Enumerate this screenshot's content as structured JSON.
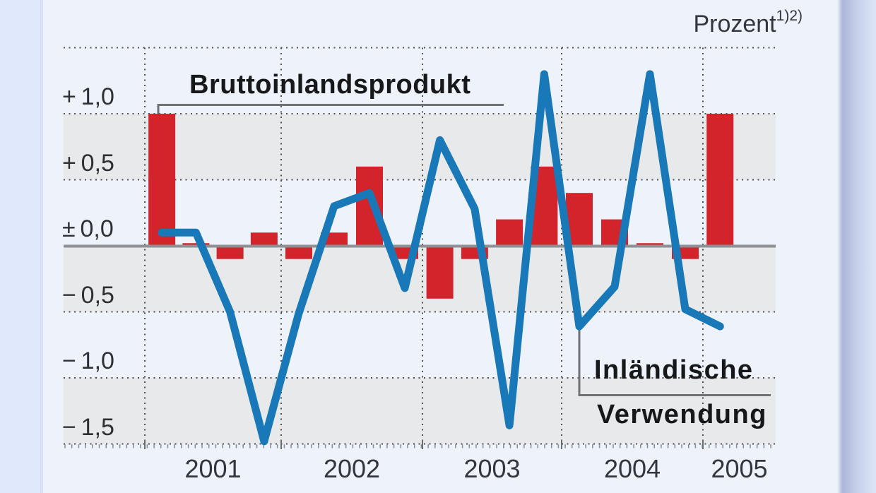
{
  "colors": {
    "page_background": "#edf2fb",
    "left_margin": "#dfe9fb",
    "right_margin_gradient": [
      "#aab5d9",
      "#dde5f7"
    ],
    "band_gray": "#e8e9ea",
    "zero_line": "#8d9094",
    "gridline": "#4d4f52",
    "leader_line": "#6e7275",
    "bar_red": "#d3242b",
    "line_blue": "#1878b8",
    "text_dark": "#17181a"
  },
  "chart_data": {
    "type": "combo",
    "title": "",
    "unit": "Prozent",
    "footnote_marks": "1)2)",
    "x_axis": {
      "year_labels": [
        "2001",
        "2002",
        "2003",
        "2004",
        "2005"
      ],
      "quarters_per_year": [
        4,
        4,
        4,
        4,
        1
      ],
      "quarters": [
        "2001 Q1",
        "2001 Q2",
        "2001 Q3",
        "2001 Q4",
        "2002 Q1",
        "2002 Q2",
        "2002 Q3",
        "2002 Q4",
        "2003 Q1",
        "2003 Q2",
        "2003 Q3",
        "2003 Q4",
        "2004 Q1",
        "2004 Q2",
        "2004 Q3",
        "2004 Q4",
        "2005 Q1"
      ]
    },
    "y_axis": {
      "tick_labels": [
        "+1,0",
        "+0,5",
        "±0,0",
        "−0,5",
        "−1,0",
        "−1,5"
      ],
      "tick_values": [
        1.0,
        0.5,
        0.0,
        -0.5,
        -1.0,
        -1.5
      ],
      "top_gridline_value": 1.5,
      "ylim": [
        -1.75,
        1.5
      ],
      "grid": "dotted",
      "zero_line": "solid"
    },
    "series": [
      {
        "name": "Bruttoinlandsprodukt",
        "type": "bar",
        "color": "#d3242b",
        "values": [
          1.0,
          0.02,
          -0.1,
          0.1,
          -0.1,
          0.1,
          0.6,
          -0.1,
          -0.4,
          -0.1,
          0.2,
          0.6,
          0.4,
          0.2,
          0.02,
          -0.1,
          1.0
        ]
      },
      {
        "name": "Inländische Verwendung",
        "label_lines": [
          "Inländische",
          "Verwendung"
        ],
        "type": "line",
        "color": "#1878b8",
        "values": [
          0.1,
          0.1,
          -0.5,
          -1.48,
          -0.51,
          0.3,
          0.4,
          -0.32,
          0.8,
          0.28,
          -1.36,
          1.3,
          -0.61,
          -0.31,
          1.3,
          -0.48,
          -0.61
        ]
      }
    ],
    "legend_position": "annotations-with-leader-lines"
  }
}
